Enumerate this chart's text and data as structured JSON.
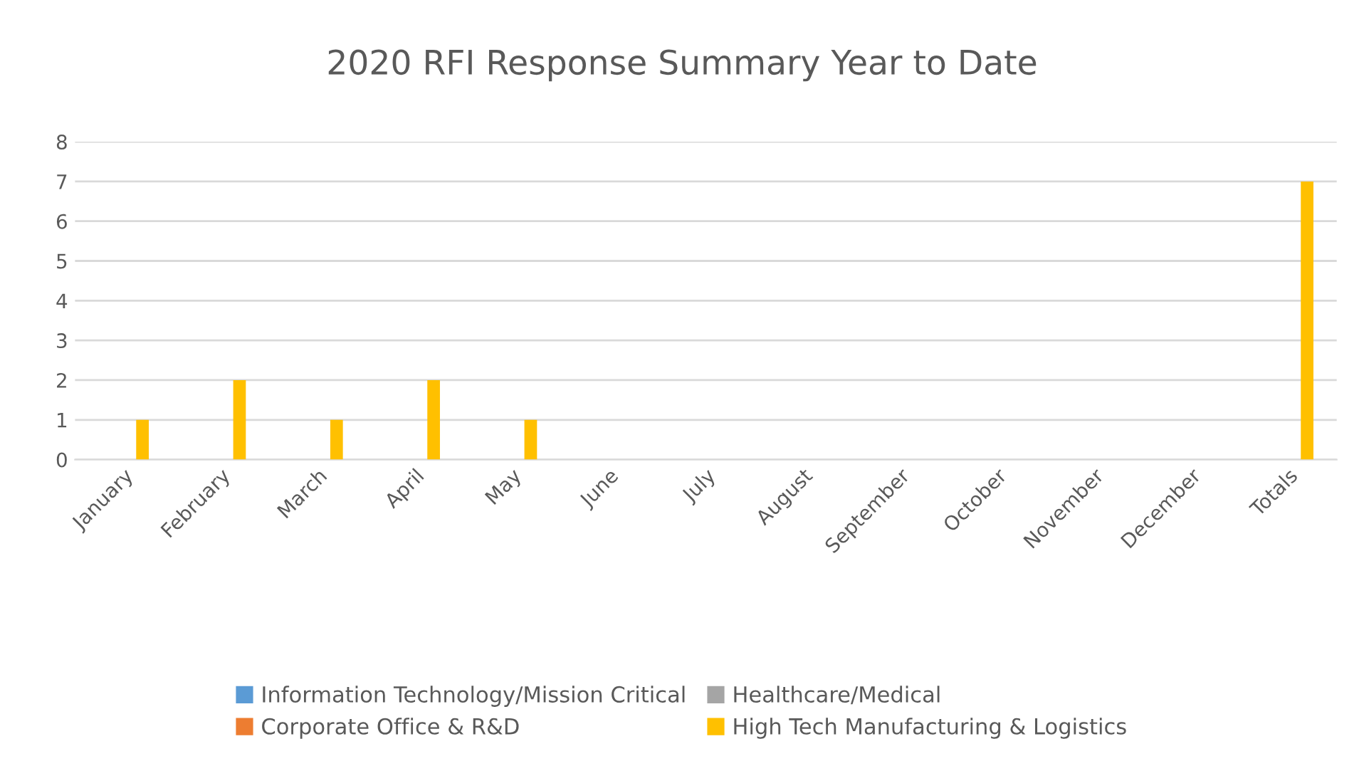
{
  "chart_data": {
    "type": "bar",
    "title": "2020 RFI Response Summary Year to Date",
    "categories": [
      "January",
      "February",
      "March",
      "April",
      "May",
      "June",
      "July",
      "August",
      "September",
      "October",
      "November",
      "December",
      "Totals"
    ],
    "series": [
      {
        "name": "Information Technology/Mission Critical",
        "color": "#5b9bd5",
        "values": [
          0,
          0,
          0,
          0,
          0,
          0,
          0,
          0,
          0,
          0,
          0,
          0,
          0
        ]
      },
      {
        "name": "Corporate Office & R&D",
        "color": "#ed7d31",
        "values": [
          0,
          0,
          0,
          0,
          0,
          0,
          0,
          0,
          0,
          0,
          0,
          0,
          0
        ]
      },
      {
        "name": "Healthcare/Medical",
        "color": "#a5a5a5",
        "values": [
          0,
          0,
          0,
          0,
          0,
          0,
          0,
          0,
          0,
          0,
          0,
          0,
          0
        ]
      },
      {
        "name": "High Tech Manufacturing & Logistics",
        "color": "#ffc000",
        "values": [
          1,
          2,
          1,
          2,
          1,
          0,
          0,
          0,
          0,
          0,
          0,
          0,
          7
        ]
      }
    ],
    "ylim": [
      0,
      8
    ],
    "yticks": [
      0,
      1,
      2,
      3,
      4,
      5,
      6,
      7,
      8
    ],
    "grid": "y",
    "legend": "bottom"
  }
}
